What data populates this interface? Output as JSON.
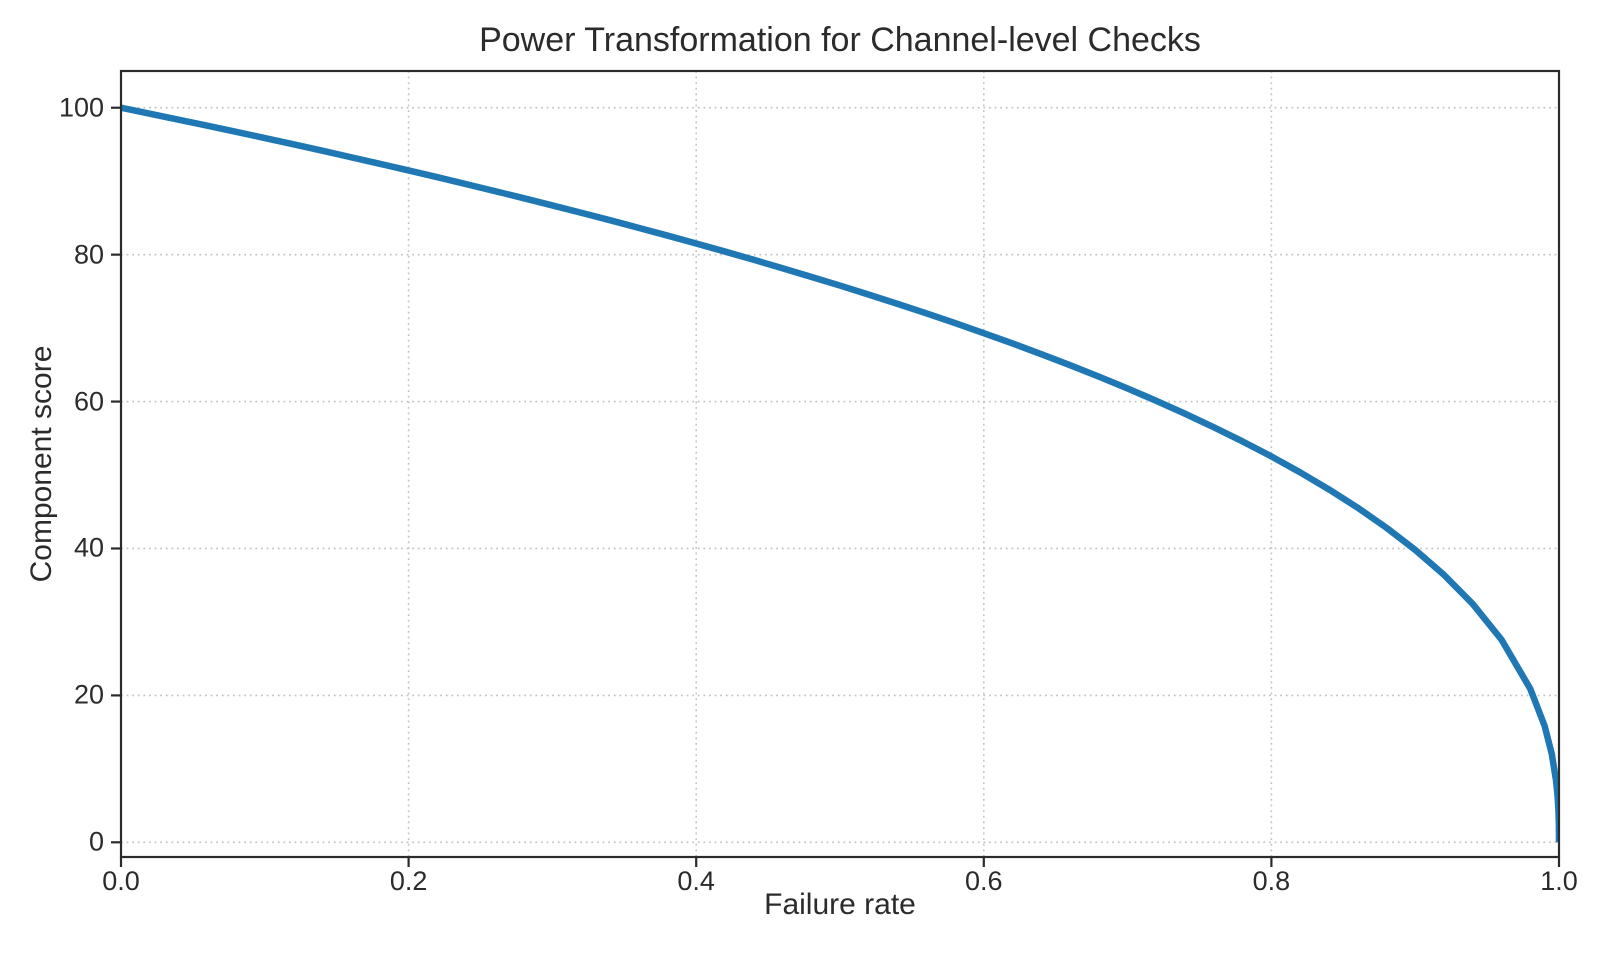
{
  "colors": {
    "line": "#1f77b4",
    "grid": "#c2c2c2",
    "spine": "#2b2b2b",
    "text": "#2b2b2b",
    "background": "#ffffff"
  },
  "chart_data": {
    "type": "line",
    "title": "Power Transformation for Channel-level Checks",
    "xlabel": "Failure rate",
    "ylabel": "Component score",
    "xlim": [
      0,
      1
    ],
    "ylim": [
      -2,
      105
    ],
    "grid": true,
    "grid_style": "dotted",
    "legend": false,
    "xticks": [
      "0.0",
      "0.2",
      "0.4",
      "0.6",
      "0.8",
      "1.0"
    ],
    "yticks": [
      "0",
      "20",
      "40",
      "60",
      "80",
      "100"
    ],
    "xtick_values": [
      0,
      0.2,
      0.4,
      0.6,
      0.8,
      1.0
    ],
    "ytick_values": [
      0,
      20,
      40,
      60,
      80,
      100
    ],
    "x": [
      0,
      0.02,
      0.04,
      0.06,
      0.08,
      0.1,
      0.12,
      0.14,
      0.16,
      0.18,
      0.2,
      0.22,
      0.24,
      0.26,
      0.28,
      0.3,
      0.32,
      0.34,
      0.36,
      0.38,
      0.4,
      0.42,
      0.44,
      0.46,
      0.48,
      0.5,
      0.52,
      0.54,
      0.56,
      0.58,
      0.6,
      0.62,
      0.64,
      0.66,
      0.68,
      0.7,
      0.72,
      0.74,
      0.76,
      0.78,
      0.8,
      0.82,
      0.84,
      0.86,
      0.88,
      0.9,
      0.92,
      0.94,
      0.96,
      0.98,
      0.99,
      0.995,
      0.998,
      0.999,
      0.9995,
      0.9999,
      1.0
    ],
    "y": [
      100,
      99.19,
      98.38,
      97.56,
      96.72,
      95.87,
      95.02,
      94.15,
      93.26,
      92.37,
      91.46,
      90.54,
      89.6,
      88.65,
      87.69,
      86.7,
      85.7,
      84.69,
      83.65,
      82.6,
      81.52,
      80.42,
      79.3,
      78.15,
      76.98,
      75.79,
      74.56,
      73.3,
      72.01,
      70.68,
      69.31,
      67.91,
      66.45,
      64.95,
      63.4,
      61.78,
      60.1,
      58.34,
      56.5,
      54.57,
      52.53,
      50.36,
      48.04,
      45.55,
      42.82,
      39.81,
      36.41,
      32.45,
      27.59,
      20.91,
      15.85,
      12.01,
      8.33,
      6.31,
      4.78,
      2.51,
      0
    ]
  }
}
